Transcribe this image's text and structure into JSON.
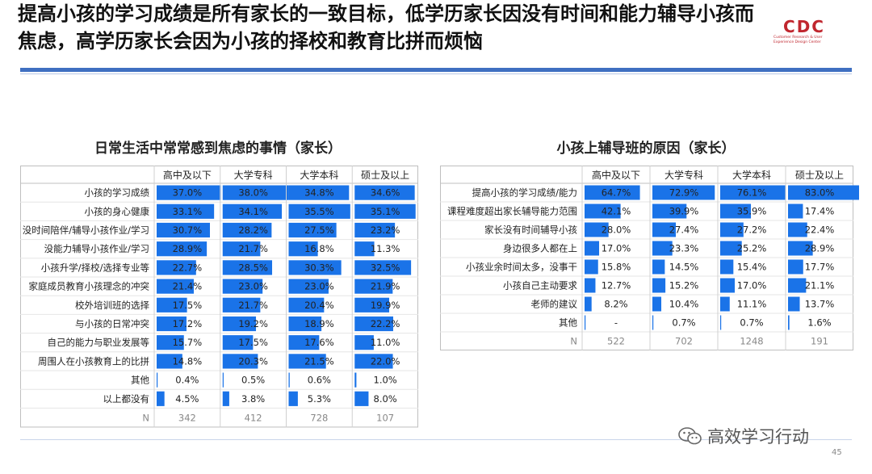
{
  "headline": "提高小孩的学习成绩是所有家长的一致目标，低学历家长因没有时间和能力辅导小孩而焦虑，高学历家长会因为小孩的择校和教育比拼而烦恼",
  "logo": {
    "text": "CDC",
    "sub": "Customer Research & User Experience Design Center",
    "color": "#c0262e"
  },
  "watermark": "高效学习行动",
  "page_number": "45",
  "colors": {
    "bar": "#1a73e8",
    "rule": "#3f6fc1"
  },
  "chart_data": [
    {
      "type": "table",
      "title": "日常生活中常常感到焦虑的事情（家长）",
      "columns": [
        "高中及以下",
        "大学专科",
        "大学本科",
        "硕士及以上"
      ],
      "rows": [
        {
          "label": "小孩的学习成绩",
          "values": [
            "37.0%",
            "38.0%",
            "34.8%",
            "34.6%"
          ]
        },
        {
          "label": "小孩的身心健康",
          "values": [
            "33.1%",
            "34.1%",
            "35.5%",
            "35.1%"
          ]
        },
        {
          "label": "没时间陪伴/辅导小孩作业/学习",
          "values": [
            "30.7%",
            "28.2%",
            "27.5%",
            "23.2%"
          ]
        },
        {
          "label": "没能力辅导小孩作业/学习",
          "values": [
            "28.9%",
            "21.7%",
            "16.8%",
            "11.3%"
          ]
        },
        {
          "label": "小孩升学/择校/选择专业等",
          "values": [
            "22.7%",
            "28.5%",
            "30.3%",
            "32.5%"
          ]
        },
        {
          "label": "家庭成员教育小孩理念的冲突",
          "values": [
            "21.4%",
            "23.0%",
            "23.0%",
            "21.9%"
          ]
        },
        {
          "label": "校外培训班的选择",
          "values": [
            "17.5%",
            "21.7%",
            "20.4%",
            "19.9%"
          ]
        },
        {
          "label": "与小孩的日常冲突",
          "values": [
            "17.2%",
            "19.2%",
            "18.9%",
            "22.2%"
          ]
        },
        {
          "label": "自己的能力与职业发展等",
          "values": [
            "15.7%",
            "17.5%",
            "17.6%",
            "11.0%"
          ]
        },
        {
          "label": "周围人在小孩教育上的比拼",
          "values": [
            "14.8%",
            "20.3%",
            "21.5%",
            "22.0%"
          ]
        },
        {
          "label": "其他",
          "values": [
            "0.4%",
            "0.5%",
            "0.6%",
            "1.0%"
          ]
        },
        {
          "label": "以上都没有",
          "values": [
            "4.5%",
            "3.8%",
            "5.3%",
            "8.0%"
          ]
        }
      ],
      "n_label": "N",
      "n_values": [
        "342",
        "412",
        "728",
        "107"
      ]
    },
    {
      "type": "table",
      "title": "小孩上辅导班的原因（家长）",
      "columns": [
        "高中及以下",
        "大学专科",
        "大学本科",
        "硕士及以上"
      ],
      "rows": [
        {
          "label": "提高小孩的学习成绩/能力",
          "values": [
            "64.7%",
            "72.9%",
            "76.1%",
            "83.0%"
          ]
        },
        {
          "label": "课程难度超出家长辅导能力范围",
          "values": [
            "42.1%",
            "39.9%",
            "35.9%",
            "17.4%"
          ]
        },
        {
          "label": "家长没有时间辅导小孩",
          "values": [
            "28.0%",
            "27.4%",
            "27.2%",
            "22.4%"
          ]
        },
        {
          "label": "身边很多人都在上",
          "values": [
            "17.0%",
            "23.3%",
            "25.2%",
            "28.9%"
          ]
        },
        {
          "label": "小孩业余时间太多，没事干",
          "values": [
            "15.8%",
            "14.5%",
            "15.4%",
            "17.7%"
          ]
        },
        {
          "label": "小孩自己主动要求",
          "values": [
            "12.7%",
            "15.2%",
            "17.0%",
            "21.1%"
          ]
        },
        {
          "label": "老师的建议",
          "values": [
            "8.2%",
            "10.4%",
            "11.1%",
            "13.7%"
          ]
        },
        {
          "label": "其他",
          "values": [
            "-",
            "0.7%",
            "0.7%",
            "1.6%"
          ]
        }
      ],
      "n_label": "N",
      "n_values": [
        "522",
        "702",
        "1248",
        "191"
      ]
    }
  ]
}
